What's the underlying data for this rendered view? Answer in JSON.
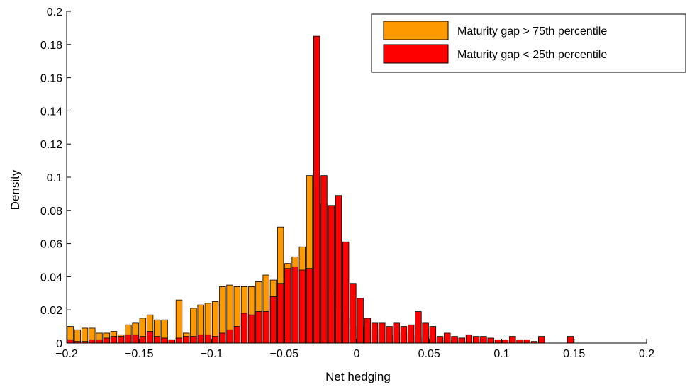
{
  "chart_data": {
    "type": "bar",
    "xlabel": "Net hedging",
    "ylabel": "Density",
    "xlim": [
      -0.2,
      0.2
    ],
    "ylim": [
      0,
      0.2
    ],
    "x_ticks": [
      "−0.2",
      "−0.15",
      "−0.1",
      "−0.05",
      "0",
      "0.05",
      "0.1",
      "0.15",
      "0.2"
    ],
    "y_ticks": [
      "0",
      "0.02",
      "0.04",
      "0.06",
      "0.08",
      "0.1",
      "0.12",
      "0.14",
      "0.16",
      "0.18",
      "0.2"
    ],
    "grid": false,
    "legend_position": "top-right",
    "bin_width": 0.005,
    "bin_centers": [
      -0.1975,
      -0.1925,
      -0.1875,
      -0.1825,
      -0.1775,
      -0.1725,
      -0.1675,
      -0.1625,
      -0.1575,
      -0.1525,
      -0.1475,
      -0.1425,
      -0.1375,
      -0.1325,
      -0.1275,
      -0.1225,
      -0.1175,
      -0.1125,
      -0.1075,
      -0.1025,
      -0.0975,
      -0.0925,
      -0.0875,
      -0.0825,
      -0.0775,
      -0.0725,
      -0.0675,
      -0.0625,
      -0.0575,
      -0.0525,
      -0.0475,
      -0.0425,
      -0.0375,
      -0.0325,
      -0.0275,
      -0.0225,
      -0.0175,
      -0.0125,
      -0.0075,
      -0.0025,
      0.0025,
      0.0075,
      0.0125,
      0.0175,
      0.0225,
      0.0275,
      0.0325,
      0.0375,
      0.0425,
      0.0475,
      0.0525,
      0.0575,
      0.0625,
      0.0675,
      0.0725,
      0.0775,
      0.0825,
      0.0875,
      0.0925,
      0.0975,
      0.1025,
      0.1075,
      0.1125,
      0.1175,
      0.1225,
      0.1275,
      0.1325,
      0.1375,
      0.1425,
      0.1475
    ],
    "series": [
      {
        "name": "Maturity gap > 75th percentile",
        "color": "#FF9900",
        "values": [
          0.01,
          0.008,
          0.009,
          0.009,
          0.006,
          0.006,
          0.007,
          0.005,
          0.011,
          0.012,
          0.015,
          0.017,
          0.014,
          0.014,
          0.002,
          0.026,
          0.006,
          0.021,
          0.023,
          0.024,
          0.025,
          0.034,
          0.035,
          0.034,
          0.034,
          0.034,
          0.037,
          0.041,
          0.038,
          0.07,
          0.048,
          0.052,
          0.058,
          0.101,
          0.094,
          0.084,
          0.032,
          0.02,
          0.015,
          0.01,
          0.01,
          0.009,
          0.008,
          0.006,
          0.005,
          0.003,
          0.006,
          0.005,
          0.004,
          0.003,
          0.004,
          0.003,
          0.002,
          0.002,
          0.003,
          0.001,
          0.001,
          0.0,
          0.001,
          0.0,
          0.0,
          0.0,
          0.0,
          0.0,
          0.0,
          0.0,
          0.0,
          0.0,
          0.0,
          0.001
        ]
      },
      {
        "name": "Maturity gap < 25th percentile",
        "color": "#FF0000",
        "values": [
          0.002,
          0.001,
          0.001,
          0.002,
          0.002,
          0.003,
          0.004,
          0.004,
          0.005,
          0.005,
          0.004,
          0.007,
          0.004,
          0.003,
          0.002,
          0.003,
          0.004,
          0.004,
          0.005,
          0.005,
          0.004,
          0.006,
          0.008,
          0.01,
          0.018,
          0.017,
          0.019,
          0.019,
          0.028,
          0.036,
          0.045,
          0.046,
          0.044,
          0.045,
          0.185,
          0.101,
          0.083,
          0.089,
          0.061,
          0.036,
          0.027,
          0.015,
          0.012,
          0.012,
          0.01,
          0.012,
          0.01,
          0.011,
          0.019,
          0.012,
          0.01,
          0.004,
          0.006,
          0.004,
          0.003,
          0.005,
          0.004,
          0.004,
          0.003,
          0.002,
          0.002,
          0.004,
          0.002,
          0.002,
          0.001,
          0.004,
          0.0,
          0.0,
          0.0,
          0.004
        ]
      }
    ]
  }
}
